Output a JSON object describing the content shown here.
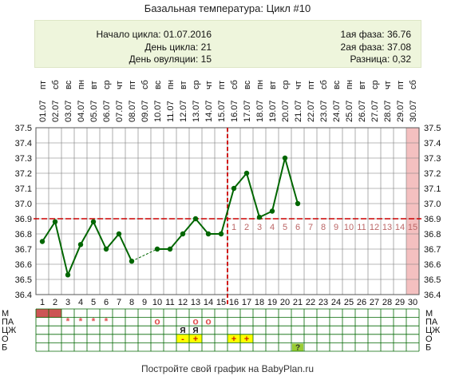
{
  "title": "Базальная температура: Цикл #10",
  "info": {
    "cycle_start": "Начало цикла: 01.07.2016",
    "cycle_day": "День цикла: 21",
    "ovulation_day": "День овуляции: 15",
    "phase1": "1ая фаза: 36.76",
    "phase2": "2ая фаза: 37.08",
    "difference": "Разница: 0,32"
  },
  "footer": "Постройте свой график на BabyPlan.ru",
  "colors": {
    "line": "#006600",
    "grid": "#777777",
    "coverline": "#cc0000",
    "menstruation": "#cc5555",
    "today": "#f4c0c0",
    "info_bg": "#eef5dc",
    "mucus": "#ffff00",
    "test": "#99cc33",
    "post_ov_label": "#bb6666"
  },
  "chart_data": {
    "type": "line",
    "ylim": [
      36.4,
      37.5
    ],
    "yticks": [
      "37.5",
      "37.4",
      "37.3",
      "37.2",
      "37.1",
      "37.0",
      "36.9",
      "36.8",
      "36.7",
      "36.6",
      "36.5",
      "36.4"
    ],
    "days": [
      1,
      2,
      3,
      4,
      5,
      6,
      7,
      8,
      9,
      10,
      11,
      12,
      13,
      14,
      15,
      16,
      17,
      18,
      19,
      20,
      21,
      22,
      23,
      24,
      25,
      26,
      27,
      28,
      29,
      30
    ],
    "weekdays": [
      "пт",
      "сб",
      "вс",
      "пн",
      "вт",
      "ср",
      "чт",
      "пт",
      "сб",
      "вс",
      "пн",
      "вт",
      "ср",
      "чт",
      "пт",
      "сб",
      "вс",
      "пн",
      "вт",
      "ср",
      "чт",
      "пт",
      "сб",
      "вс",
      "пн",
      "вт",
      "ср",
      "чт",
      "пт",
      "сб"
    ],
    "dates": [
      "01.07",
      "02.07",
      "03.07",
      "04.07",
      "05.07",
      "06.07",
      "07.07",
      "08.07",
      "09.07",
      "10.07",
      "11.07",
      "12.07",
      "13.07",
      "14.07",
      "15.07",
      "16.07",
      "17.07",
      "18.07",
      "19.07",
      "20.07",
      "21.07",
      "22.07",
      "23.07",
      "24.07",
      "25.07",
      "26.07",
      "27.07",
      "28.07",
      "29.07",
      "30.07"
    ],
    "series": [
      {
        "values": [
          36.75,
          36.88,
          36.53,
          36.73,
          36.88,
          36.7,
          36.8,
          36.62,
          null,
          36.7,
          36.7,
          36.8,
          36.9,
          36.8,
          36.8,
          37.1,
          37.2,
          36.91,
          36.95,
          37.3,
          37.0,
          null,
          null,
          null,
          null,
          null,
          null,
          null,
          null,
          null
        ]
      }
    ],
    "coverline": 36.9,
    "ovulation_day": 15,
    "post_ovulation_labels": [
      "1",
      "2",
      "3",
      "4",
      "5",
      "6",
      "7",
      "8",
      "9",
      "10",
      "11",
      "12",
      "13",
      "14",
      "15"
    ],
    "highlighted_day": 30,
    "bottom_rows": {
      "labels": [
        "М",
        "ПА",
        "ЦЖ",
        "О",
        "Б"
      ],
      "menstruation_days": [
        1,
        2
      ],
      "pa": [
        {
          "day": 3,
          "mark": "*"
        },
        {
          "day": 4,
          "mark": "*"
        },
        {
          "day": 5,
          "mark": "*"
        },
        {
          "day": 6,
          "mark": "*"
        },
        {
          "day": 10,
          "mark": "o"
        },
        {
          "day": 13,
          "mark": "o"
        },
        {
          "day": 14,
          "mark": "o"
        }
      ],
      "cm": [
        {
          "day": 12,
          "mark": "Я"
        },
        {
          "day": 13,
          "mark": "Я"
        }
      ],
      "o": [
        {
          "day": 12,
          "mark": "-"
        },
        {
          "day": 13,
          "mark": "+"
        },
        {
          "day": 16,
          "mark": "+"
        },
        {
          "day": 17,
          "mark": "+"
        }
      ],
      "b": [
        {
          "day": 21,
          "mark": "?"
        }
      ]
    }
  }
}
